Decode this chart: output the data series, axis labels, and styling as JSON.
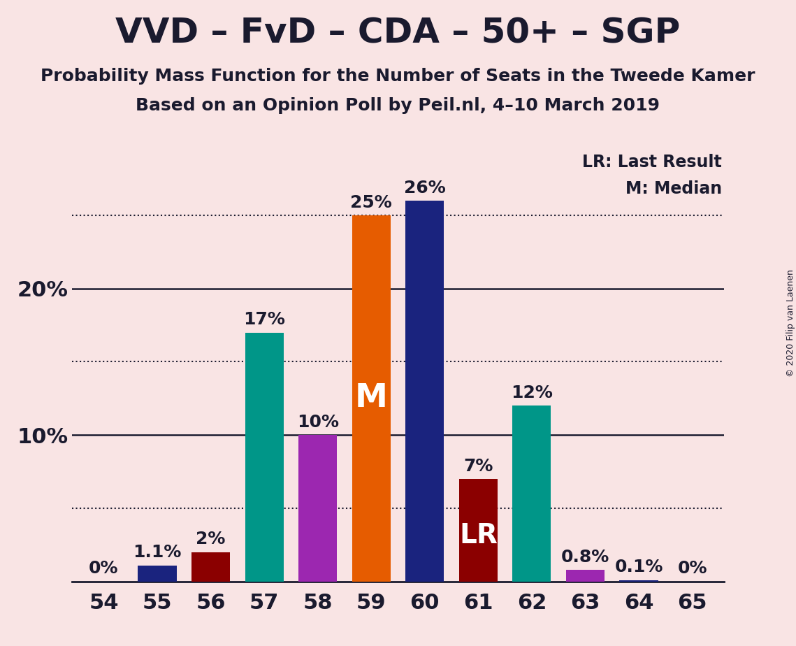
{
  "title": "VVD – FvD – CDA – 50+ – SGP",
  "subtitle1": "Probability Mass Function for the Number of Seats in the Tweede Kamer",
  "subtitle2": "Based on an Opinion Poll by Peil.nl, 4–10 March 2019",
  "copyright": "© 2020 Filip van Laenen",
  "legend_lr": "LR: Last Result",
  "legend_m": "M: Median",
  "background_color": "#f9e4e4",
  "categories": [
    54,
    55,
    56,
    57,
    58,
    59,
    60,
    61,
    62,
    63,
    64,
    65
  ],
  "values": [
    0.0,
    1.1,
    2.0,
    17.0,
    10.0,
    25.0,
    26.0,
    7.0,
    12.0,
    0.8,
    0.1,
    0.0
  ],
  "labels": [
    "0%",
    "1.1%",
    "2%",
    "17%",
    "10%",
    "25%",
    "26%",
    "7%",
    "12%",
    "0.8%",
    "0.1%",
    "0%"
  ],
  "bar_colors": [
    "#1a237e",
    "#1a237e",
    "#8b0000",
    "#009688",
    "#9c27b0",
    "#e65c00",
    "#1a237e",
    "#8b0000",
    "#009688",
    "#9c27b0",
    "#1a237e",
    "#1a237e"
  ],
  "median_bar_idx": 5,
  "lr_bar_idx": 7,
  "ylim": [
    0,
    30
  ],
  "dotted_hlines": [
    5,
    15,
    25
  ],
  "solid_hlines": [
    10,
    20
  ],
  "ytick_positions": [
    10,
    20
  ],
  "ytick_labels": [
    "10%",
    "20%"
  ],
  "title_fontsize": 36,
  "subtitle_fontsize": 18,
  "bar_label_fontsize": 18,
  "legend_fontsize": 17,
  "ytick_fontsize": 22,
  "xtick_fontsize": 22,
  "copyright_fontsize": 9,
  "M_fontsize": 34,
  "LR_fontsize": 28
}
